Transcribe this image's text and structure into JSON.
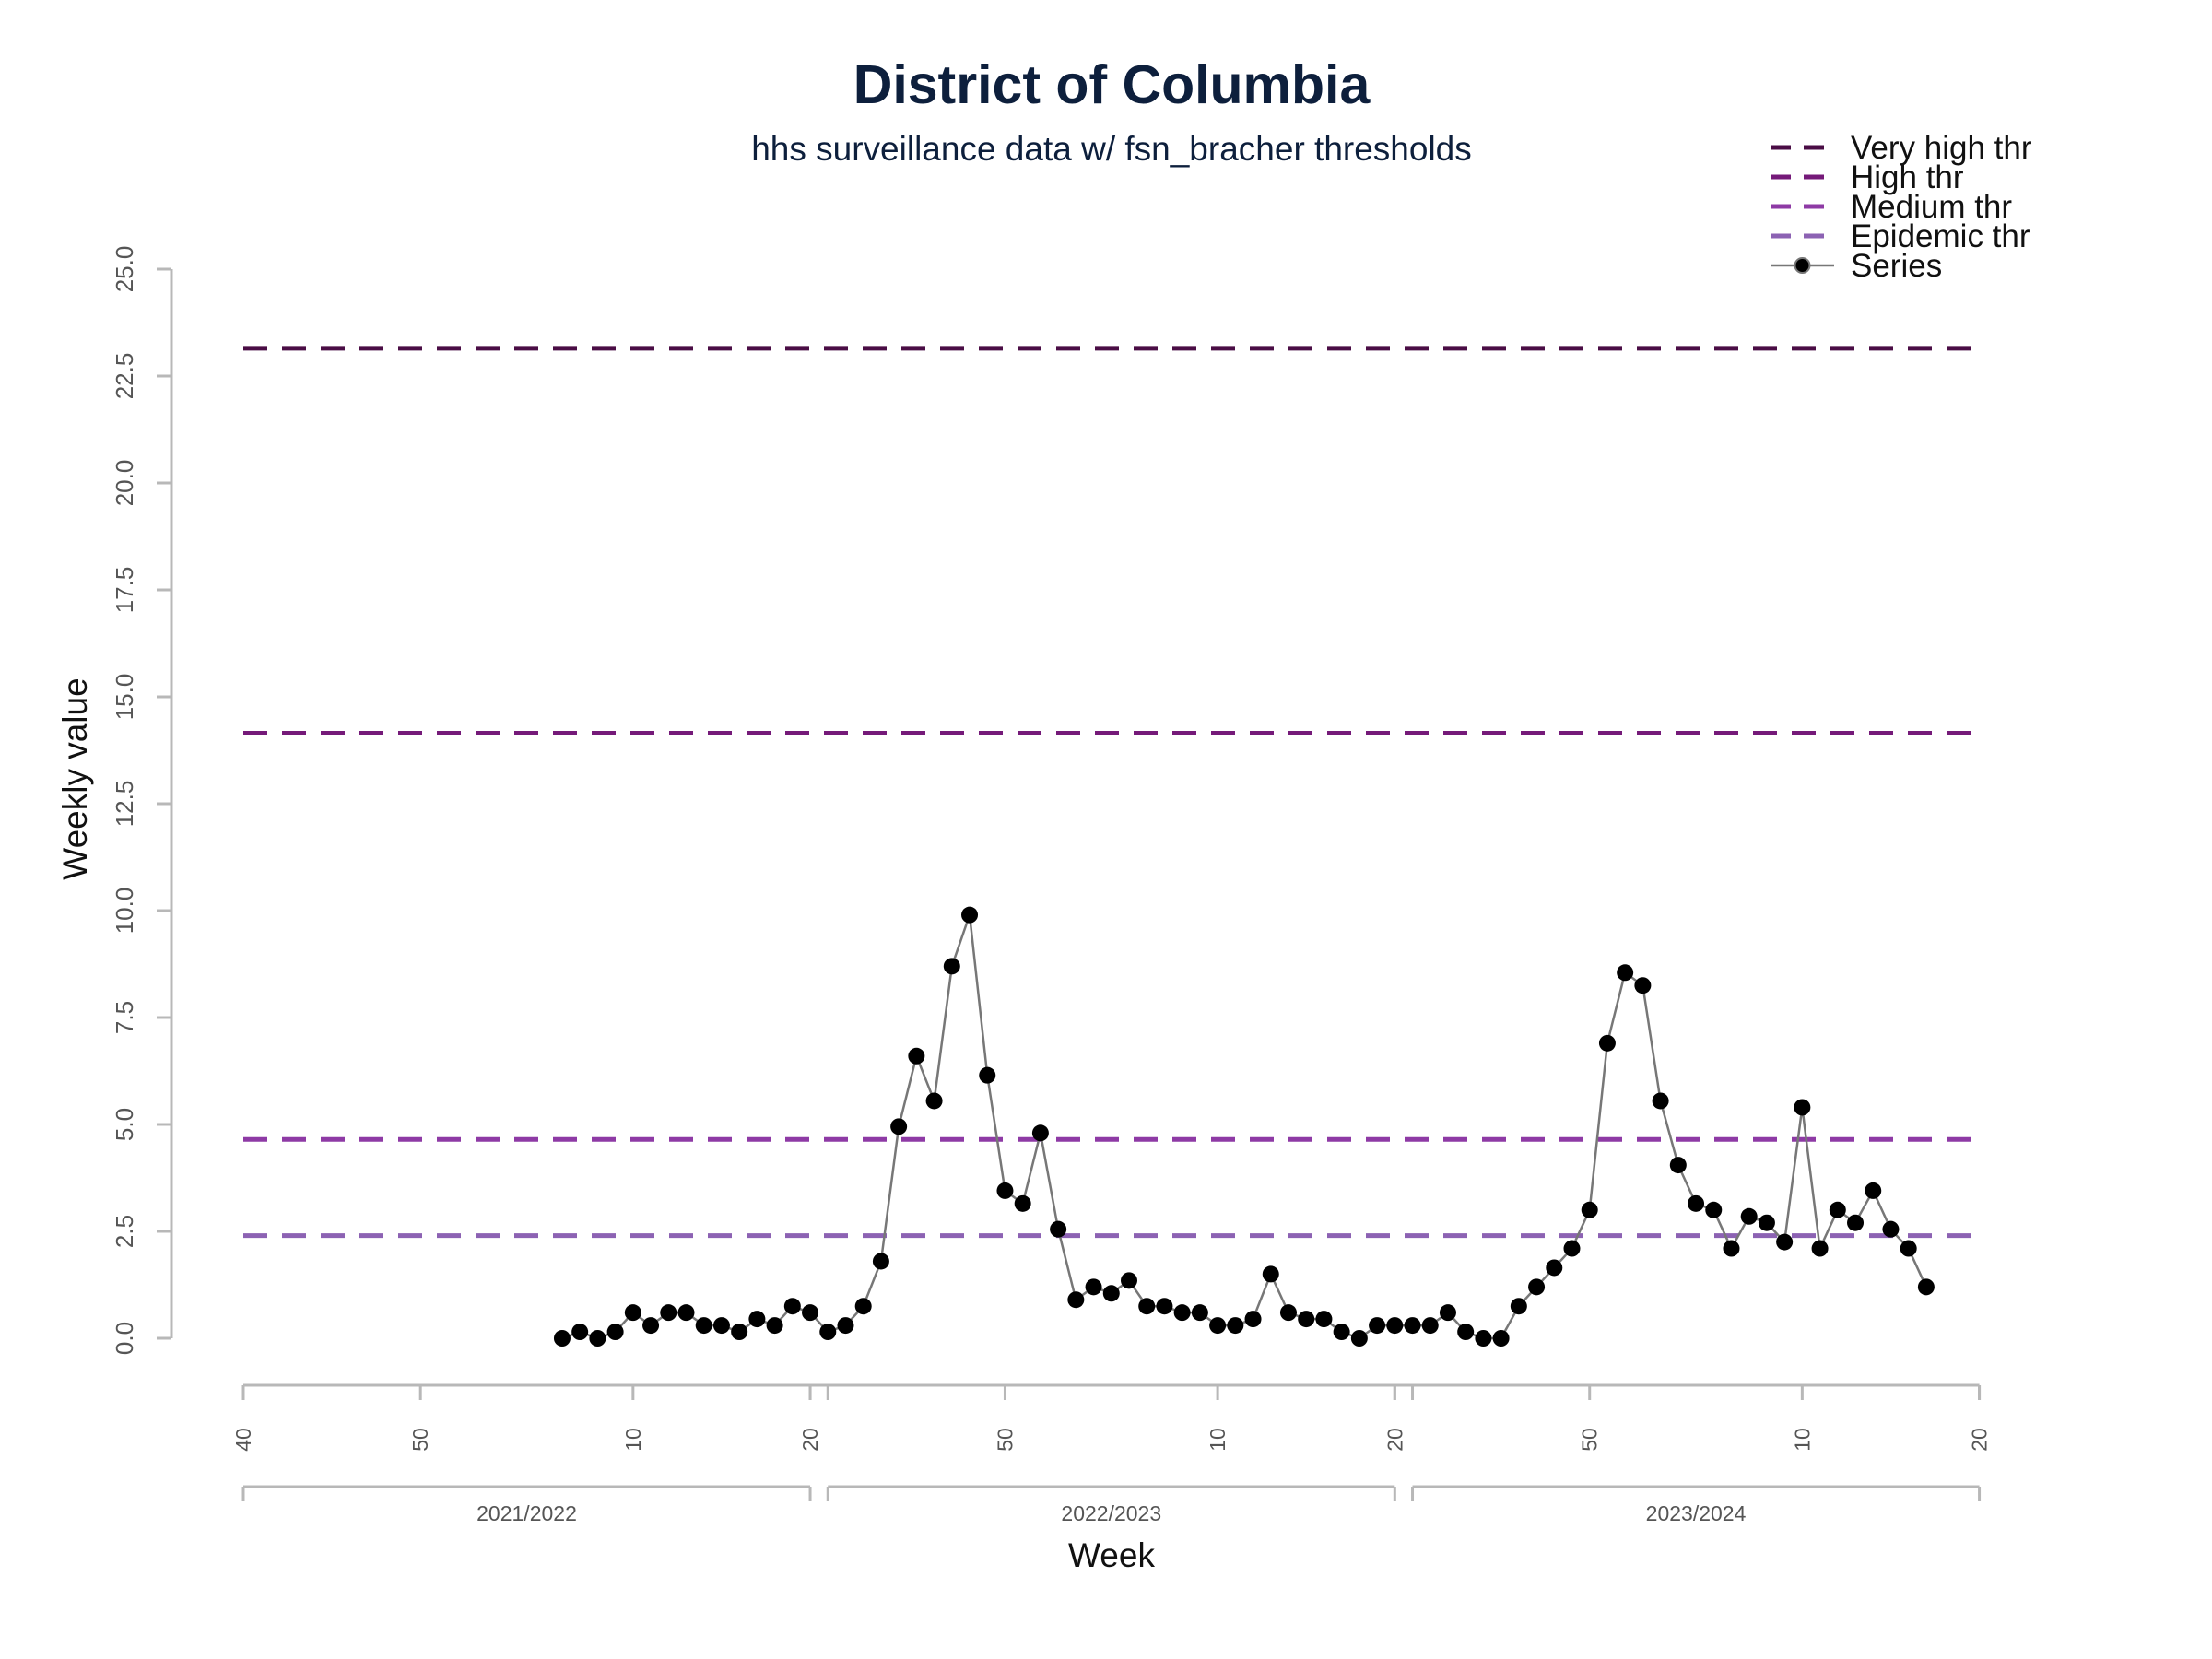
{
  "chart_data": {
    "type": "line",
    "title": "District of Columbia",
    "subtitle": "hhs surveillance data w/ fsn_bracher thresholds",
    "xlabel": "Week",
    "ylabel": "Weekly value",
    "ylim": [
      0,
      25
    ],
    "y_ticks": [
      "0.0",
      "2.5",
      "5.0",
      "7.5",
      "10.0",
      "12.5",
      "15.0",
      "17.5",
      "20.0",
      "22.5",
      "25.0"
    ],
    "week_ticks": [
      {
        "label": "40",
        "week_index": 0
      },
      {
        "label": "50",
        "week_index": 10
      },
      {
        "label": "10",
        "week_index": 22
      },
      {
        "label": "20",
        "week_index": 32
      },
      {
        "label": "50",
        "week_index": 43
      },
      {
        "label": "10",
        "week_index": 55
      },
      {
        "label": "20",
        "week_index": 65
      },
      {
        "label": "50",
        "week_index": 76
      },
      {
        "label": "10",
        "week_index": 88
      },
      {
        "label": "20",
        "week_index": 98
      }
    ],
    "season_ranges": [
      {
        "label": "2021/2022",
        "start": 0,
        "end": 32
      },
      {
        "label": "2022/2023",
        "start": 33,
        "end": 65
      },
      {
        "label": "2023/2024",
        "start": 66,
        "end": 98
      }
    ],
    "thresholds": [
      {
        "name": "Very high thr",
        "value": 23.15,
        "color": "#4a0d45"
      },
      {
        "name": "High thr",
        "value": 14.15,
        "color": "#751a79"
      },
      {
        "name": "Medium thr",
        "value": 4.65,
        "color": "#8e3aa5"
      },
      {
        "name": "Epidemic thr",
        "value": 2.4,
        "color": "#8c62b3"
      }
    ],
    "series": [
      {
        "name": "Series",
        "color": "#777777",
        "marker_color": "#000000",
        "start_week_index": 18,
        "values": [
          0.0,
          0.15,
          0.0,
          0.15,
          0.6,
          0.3,
          0.6,
          0.6,
          0.3,
          0.3,
          0.15,
          0.45,
          0.3,
          0.75,
          0.6,
          0.15,
          0.3,
          0.75,
          1.8,
          4.95,
          6.6,
          5.55,
          8.7,
          9.9,
          6.15,
          3.45,
          3.15,
          4.8,
          2.55,
          0.9,
          1.2,
          1.05,
          1.35,
          0.75,
          0.75,
          0.6,
          0.6,
          0.3,
          0.3,
          0.45,
          1.5,
          0.6,
          0.45,
          0.45,
          0.15,
          0.0,
          0.3,
          0.3,
          0.3,
          0.3,
          0.6,
          0.15,
          0.0,
          0.0,
          0.75,
          1.2,
          1.65,
          2.1,
          3.0,
          6.9,
          8.55,
          8.25,
          5.55,
          4.05,
          3.15,
          3.0,
          2.1,
          2.85,
          2.7,
          2.25,
          5.4,
          2.1,
          3.0,
          2.7,
          3.45,
          2.55,
          2.1,
          1.2
        ]
      }
    ],
    "legend_position": "top-right",
    "grid": false
  }
}
